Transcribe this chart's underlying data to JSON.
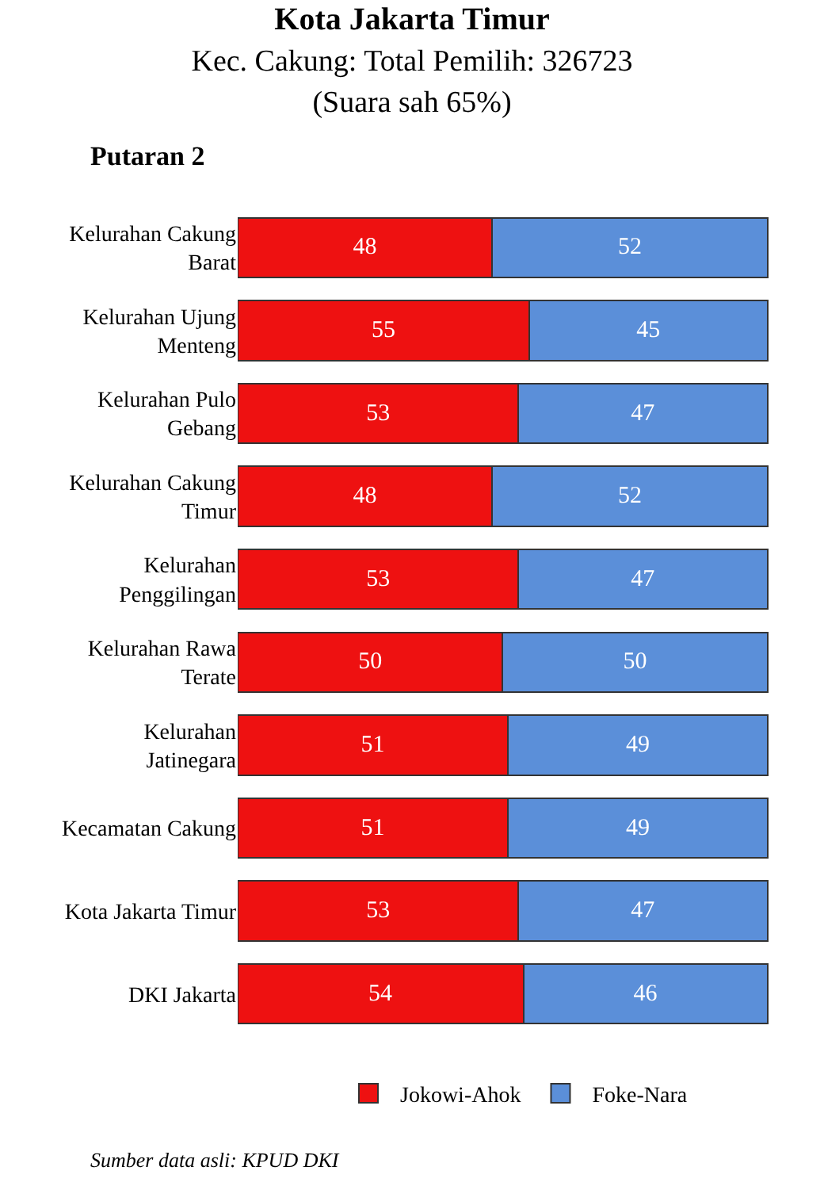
{
  "chart_data": {
    "type": "bar",
    "orientation": "horizontal",
    "stacked": true,
    "data_labels": true,
    "legend": "bottom",
    "title": "Kota Jakarta Timur",
    "subtitle": "Kec. Cakung: Total Pemilih: 326723\n(Suara sah 65%)",
    "annotations": [
      "Putaran 2",
      "Sumber data asli: KPUD DKI"
    ],
    "categories": [
      "Kelurahan Cakung Barat",
      "Kelurahan Ujung Menteng",
      "Kelurahan Pulo Gebang",
      "Kelurahan Cakung Timur",
      "Kelurahan Penggilingan",
      "Kelurahan Rawa Terate",
      "Kelurahan Jatinegara",
      "Kecamatan Cakung",
      "Kota Jakarta Timur",
      "DKI Jakarta"
    ],
    "series": [
      {
        "name": "Jokowi-Ahok",
        "color": "#ee1111",
        "values": [
          48,
          55,
          53,
          48,
          53,
          50,
          51,
          51,
          53,
          54
        ]
      },
      {
        "name": "Foke-Nara",
        "color": "#5b8fd9",
        "values": [
          52,
          45,
          47,
          52,
          47,
          50,
          49,
          49,
          47,
          46
        ]
      }
    ]
  }
}
